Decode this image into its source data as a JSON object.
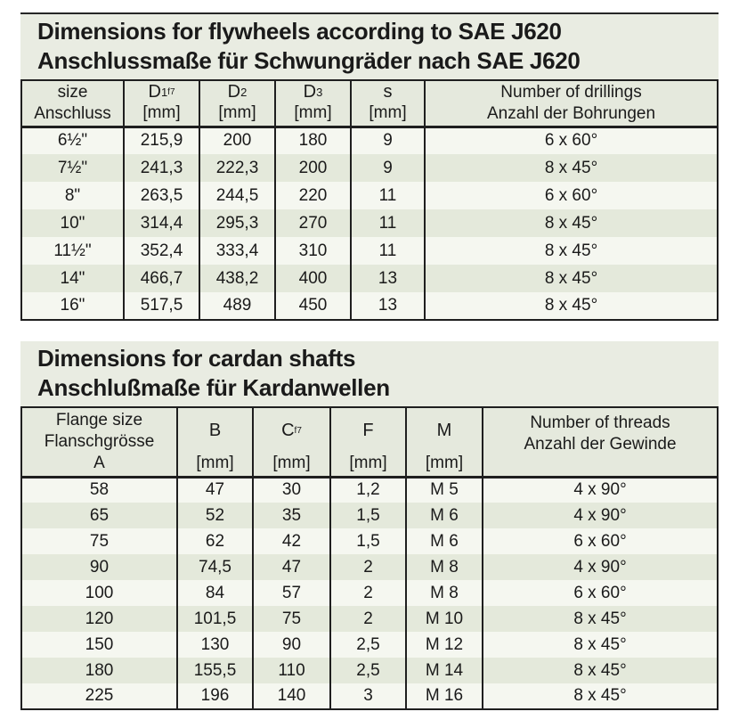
{
  "colors": {
    "panel_bg": "#e9ece2",
    "header_bg": "#e5e9dd",
    "row_odd": "#f5f7f0",
    "row_even": "#e4e9db",
    "border": "#1f1f1f",
    "text": "#1a1a1a"
  },
  "flywheel_section": {
    "title_line1": "Dimensions for flywheels according to SAE J620",
    "title_line2": "Anschlussmaße für Schwungräder nach SAE J620",
    "table": {
      "headers": [
        {
          "line1": "size",
          "line2": "Anschluss"
        },
        {
          "symbol": "D",
          "sub": "1",
          "subsub": "f7",
          "unit": "[mm]"
        },
        {
          "symbol": "D",
          "sub": "2",
          "unit": "[mm]"
        },
        {
          "symbol": "D",
          "sub": "3",
          "unit": "[mm]"
        },
        {
          "symbol": "s",
          "unit": "[mm]"
        },
        {
          "line1": "Number of drillings",
          "line2": "Anzahl der Bohrungen"
        }
      ],
      "rows": [
        [
          "6½\"",
          "215,9",
          "200",
          "180",
          "9",
          "6 x 60°"
        ],
        [
          "7½\"",
          "241,3",
          "222,3",
          "200",
          "9",
          "8 x 45°"
        ],
        [
          "8\"",
          "263,5",
          "244,5",
          "220",
          "11",
          "6 x 60°"
        ],
        [
          "10\"",
          "314,4",
          "295,3",
          "270",
          "11",
          "8 x 45°"
        ],
        [
          "11½\"",
          "352,4",
          "333,4",
          "310",
          "11",
          "8 x 45°"
        ],
        [
          "14\"",
          "466,7",
          "438,2",
          "400",
          "13",
          "8 x 45°"
        ],
        [
          "16\"",
          "517,5",
          "489",
          "450",
          "13",
          "8 x 45°"
        ]
      ]
    }
  },
  "cardan_section": {
    "title_line1": "Dimensions for cardan shafts",
    "title_line2": "Anschlußmaße für Kardanwellen",
    "table": {
      "headers": [
        {
          "line1": "Flange size",
          "line2": "Flanschgrösse",
          "line3": "A"
        },
        {
          "symbol": "B",
          "unit": "[mm]"
        },
        {
          "symbol": "C",
          "subsub": "f7",
          "unit": "[mm]"
        },
        {
          "symbol": "F",
          "unit": "[mm]"
        },
        {
          "symbol": "M",
          "unit": "[mm]"
        },
        {
          "line1": "Number of threads",
          "line2": "Anzahl der Gewinde"
        }
      ],
      "rows": [
        [
          "58",
          "47",
          "30",
          "1,2",
          "M 5",
          "4 x 90°"
        ],
        [
          "65",
          "52",
          "35",
          "1,5",
          "M 6",
          "4 x 90°"
        ],
        [
          "75",
          "62",
          "42",
          "1,5",
          "M 6",
          "6 x 60°"
        ],
        [
          "90",
          "74,5",
          "47",
          "2",
          "M 8",
          "4 x 90°"
        ],
        [
          "100",
          "84",
          "57",
          "2",
          "M 8",
          "6 x 60°"
        ],
        [
          "120",
          "101,5",
          "75",
          "2",
          "M 10",
          "8 x 45°"
        ],
        [
          "150",
          "130",
          "90",
          "2,5",
          "M 12",
          "8 x 45°"
        ],
        [
          "180",
          "155,5",
          "110",
          "2,5",
          "M 14",
          "8 x 45°"
        ],
        [
          "225",
          "196",
          "140",
          "3",
          "M 16",
          "8 x 45°"
        ]
      ]
    }
  }
}
